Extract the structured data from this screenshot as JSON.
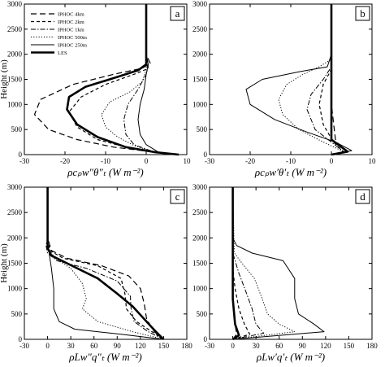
{
  "chart_data": [
    {
      "id": "a",
      "type": "line",
      "panel_label": "a",
      "ylabel": "Height (m)",
      "xlabel": "ρcₚw″θ″ₜ  (W m⁻²)",
      "xlim": [
        -30,
        10
      ],
      "ylim": [
        0,
        3000
      ],
      "xticks": [
        -30,
        -20,
        -10,
        0,
        10
      ],
      "yticks": [
        0,
        500,
        1000,
        1500,
        2000,
        2500,
        3000
      ],
      "legend_position": "top-left",
      "legend": [
        "IPHOC 4km",
        "IPHOC 2km",
        "IPHOC 1km",
        "IPHOC 500m",
        "IPHOC 250m",
        "LES"
      ],
      "series": [
        {
          "name": "IPHOC 4km",
          "style": "dash",
          "x": [
            8,
            2,
            -8,
            -17,
            -24,
            -27.5,
            -26,
            -18,
            -8,
            -1,
            1,
            0,
            0,
            0
          ],
          "y": [
            0,
            50,
            150,
            300,
            500,
            800,
            1100,
            1400,
            1600,
            1720,
            1820,
            2000,
            2500,
            3000
          ]
        },
        {
          "name": "IPHOC 2km",
          "style": "shortdash",
          "x": [
            8,
            3,
            -5,
            -12,
            -17,
            -19,
            -16,
            -10,
            -3,
            0,
            0.5,
            0,
            0
          ],
          "y": [
            0,
            50,
            150,
            300,
            550,
            850,
            1150,
            1400,
            1600,
            1700,
            1800,
            2000,
            3000
          ]
        },
        {
          "name": "IPHOC 1km",
          "style": "dashdot",
          "x": [
            8,
            2,
            -3,
            -5,
            -5.5,
            -4.5,
            -2,
            0,
            0.5,
            0,
            0
          ],
          "y": [
            0,
            50,
            200,
            400,
            700,
            1000,
            1300,
            1600,
            1750,
            2000,
            3000
          ]
        },
        {
          "name": "IPHOC 500m",
          "style": "dot",
          "x": [
            8,
            2,
            -3,
            -7,
            -10,
            -11,
            -9,
            -4,
            -1,
            0,
            0
          ],
          "y": [
            0,
            50,
            180,
            350,
            550,
            800,
            1050,
            1250,
            1450,
            1700,
            3000
          ]
        },
        {
          "name": "IPHOC 250m",
          "style": "thin",
          "x": [
            8,
            3,
            0,
            -1.5,
            -2,
            -1.5,
            -0.5,
            0,
            0.5,
            0,
            0
          ],
          "y": [
            0,
            50,
            200,
            400,
            700,
            1000,
            1300,
            1600,
            1800,
            2000,
            3000
          ]
        },
        {
          "name": "LES",
          "style": "thick",
          "x": [
            8,
            2,
            -5,
            -12,
            -17,
            -19.5,
            -19,
            -15,
            -7,
            -2,
            0,
            0,
            0
          ],
          "y": [
            0,
            50,
            150,
            350,
            600,
            900,
            1150,
            1350,
            1550,
            1680,
            1800,
            2100,
            3000
          ]
        }
      ]
    },
    {
      "id": "b",
      "type": "line",
      "panel_label": "b",
      "xlabel": "ρcₚw′θ′ₜ  (W m⁻²)",
      "xlim": [
        -30,
        10
      ],
      "ylim": [
        0,
        3000
      ],
      "xticks": [
        -30,
        -20,
        -10,
        0,
        10
      ],
      "yticks": [
        0,
        500,
        1000,
        1500,
        2000,
        2500,
        3000
      ],
      "series": [
        {
          "name": "IPHOC 4km",
          "style": "dash",
          "x": [
            0,
            3,
            1,
            0,
            0,
            0
          ],
          "y": [
            0,
            50,
            300,
            1000,
            2000,
            3000
          ]
        },
        {
          "name": "IPHOC 2km",
          "style": "shortdash",
          "x": [
            0,
            3,
            0.5,
            -2,
            -3,
            -2,
            0,
            0
          ],
          "y": [
            0,
            50,
            250,
            600,
            1000,
            1400,
            1700,
            3000
          ]
        },
        {
          "name": "IPHOC 1km",
          "style": "dashdot",
          "x": [
            0,
            3,
            0,
            -4,
            -6,
            -5,
            -2,
            0,
            0
          ],
          "y": [
            0,
            60,
            250,
            500,
            900,
            1200,
            1500,
            1750,
            3000
          ]
        },
        {
          "name": "IPHOC 500m",
          "style": "dot",
          "x": [
            0,
            3,
            -2,
            -8,
            -12,
            -13,
            -11,
            -7,
            -3,
            0,
            0
          ],
          "y": [
            0,
            60,
            250,
            500,
            800,
            1100,
            1400,
            1600,
            1750,
            1900,
            3000
          ]
        },
        {
          "name": "IPHOC 250m",
          "style": "thin",
          "x": [
            0,
            5,
            1,
            -6,
            -14,
            -20,
            -21,
            -17,
            -8,
            -1,
            0,
            0
          ],
          "y": [
            0,
            80,
            250,
            450,
            700,
            1000,
            1300,
            1500,
            1650,
            1750,
            2000,
            3000
          ]
        },
        {
          "name": "LES",
          "style": "thick",
          "x": [
            0,
            4,
            0,
            0,
            0
          ],
          "y": [
            0,
            60,
            300,
            1500,
            3000
          ]
        }
      ]
    },
    {
      "id": "c",
      "type": "line",
      "panel_label": "c",
      "ylabel": "Height (m)",
      "xlabel": "ρLw″q″ₜ  (W m⁻²)",
      "xlim": [
        -30,
        180
      ],
      "ylim": [
        0,
        3000
      ],
      "xticks": [
        -30,
        0,
        30,
        60,
        90,
        120,
        150,
        180
      ],
      "yticks": [
        0,
        500,
        1000,
        1500,
        2000,
        2500,
        3000
      ],
      "series": [
        {
          "name": "IPHOC 4km",
          "style": "dash",
          "x": [
            150,
            138,
            128,
            125,
            120,
            105,
            70,
            25,
            5,
            0,
            0
          ],
          "y": [
            0,
            150,
            400,
            700,
            1000,
            1250,
            1450,
            1600,
            1750,
            2000,
            3000
          ]
        },
        {
          "name": "IPHOC 2km",
          "style": "shortdash",
          "x": [
            150,
            135,
            115,
            102,
            100,
            95,
            65,
            20,
            3,
            0,
            0
          ],
          "y": [
            0,
            150,
            350,
            600,
            900,
            1200,
            1450,
            1600,
            1750,
            2000,
            3000
          ]
        },
        {
          "name": "IPHOC 1km",
          "style": "dashdot",
          "x": [
            150,
            130,
            112,
            108,
            107,
            90,
            50,
            12,
            0,
            -2,
            0,
            0
          ],
          "y": [
            0,
            150,
            350,
            600,
            850,
            1150,
            1400,
            1550,
            1700,
            1850,
            2000,
            3000
          ]
        },
        {
          "name": "IPHOC 500m",
          "style": "dot",
          "x": [
            150,
            110,
            65,
            45,
            50,
            45,
            30,
            10,
            0,
            0
          ],
          "y": [
            0,
            150,
            350,
            600,
            800,
            1100,
            1400,
            1600,
            1800,
            3000
          ]
        },
        {
          "name": "IPHOC 250m",
          "style": "thin",
          "x": [
            150,
            95,
            35,
            15,
            8,
            8,
            5,
            2,
            0,
            0
          ],
          "y": [
            0,
            100,
            200,
            350,
            600,
            1000,
            1400,
            1700,
            1900,
            3000
          ]
        },
        {
          "name": "LES",
          "style": "thick",
          "x": [
            150,
            140,
            125,
            110,
            90,
            65,
            25,
            5,
            0,
            0
          ],
          "y": [
            0,
            150,
            400,
            650,
            900,
            1200,
            1500,
            1650,
            1800,
            3000
          ]
        }
      ]
    },
    {
      "id": "d",
      "type": "line",
      "panel_label": "d",
      "xlabel": "ρLw′q′ₜ  (W m⁻²)",
      "xlim": [
        -30,
        180
      ],
      "ylim": [
        0,
        3000
      ],
      "xticks": [
        -30,
        0,
        30,
        60,
        90,
        120,
        150,
        180
      ],
      "yticks": [
        0,
        500,
        1000,
        1500,
        2000,
        2500,
        3000
      ],
      "series": [
        {
          "name": "IPHOC 4km",
          "style": "dash",
          "x": [
            0,
            5,
            2,
            0,
            0,
            0
          ],
          "y": [
            0,
            100,
            400,
            1000,
            2000,
            3000
          ]
        },
        {
          "name": "IPHOC 2km",
          "style": "shortdash",
          "x": [
            0,
            22,
            15,
            8,
            3,
            0,
            0
          ],
          "y": [
            0,
            100,
            300,
            600,
            1000,
            1400,
            3000
          ]
        },
        {
          "name": "IPHOC 1km",
          "style": "dashdot",
          "x": [
            0,
            40,
            30,
            25,
            18,
            8,
            0,
            0
          ],
          "y": [
            0,
            120,
            300,
            600,
            900,
            1300,
            1700,
            3000
          ]
        },
        {
          "name": "IPHOC 500m",
          "style": "dot",
          "x": [
            0,
            80,
            60,
            45,
            38,
            28,
            12,
            2,
            0
          ],
          "y": [
            0,
            150,
            300,
            500,
            800,
            1200,
            1500,
            1700,
            3000
          ]
        },
        {
          "name": "IPHOC 250m",
          "style": "thin",
          "x": [
            0,
            118,
            105,
            85,
            80,
            80,
            65,
            25,
            5,
            0,
            0
          ],
          "y": [
            0,
            150,
            300,
            500,
            800,
            1200,
            1550,
            1700,
            1850,
            2000,
            3000
          ]
        },
        {
          "name": "LES",
          "style": "thick",
          "x": [
            0,
            8,
            3,
            0,
            0
          ],
          "y": [
            0,
            80,
            300,
            800,
            3000
          ]
        }
      ]
    }
  ]
}
